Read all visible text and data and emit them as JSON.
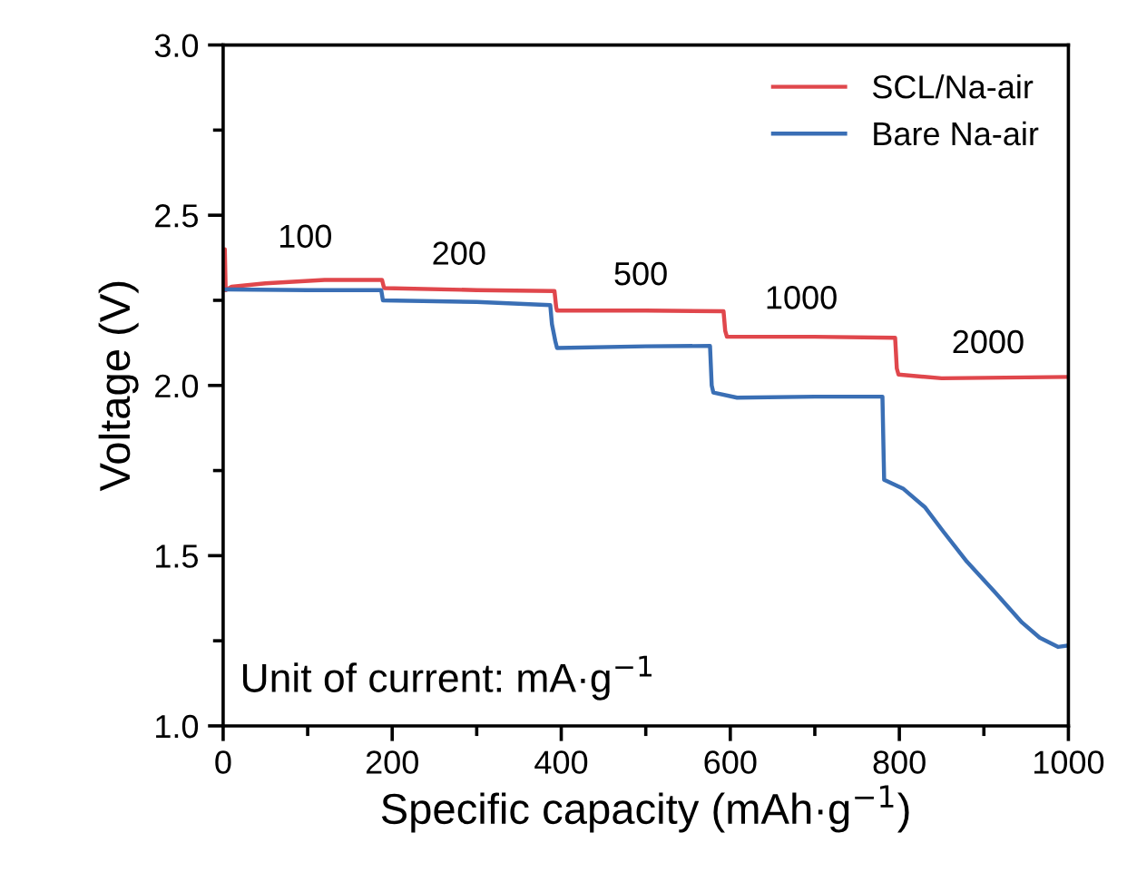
{
  "chart_data": {
    "type": "line",
    "xlabel": "Specific capacity (mAh·g$^{−1}$)",
    "ylabel": "Voltage (V)",
    "xlim": [
      0,
      1000
    ],
    "xticks": [
      0,
      200,
      400,
      600,
      800,
      1000
    ],
    "ylim": [
      1.0,
      3.0
    ],
    "yticks": [
      {
        "value": 1.0,
        "label": "1.0"
      },
      {
        "value": 1.5,
        "label": "1.5"
      },
      {
        "value": 2.0,
        "label": "2.0"
      },
      {
        "value": 2.5,
        "label": "2.5"
      },
      {
        "value": 3.0,
        "label": "3.0"
      }
    ],
    "grid": false,
    "legend": "top right",
    "marker": "none",
    "line_style": "solid",
    "series": [
      {
        "name": "SCL/Na-air",
        "color": "#e0474c",
        "x": [
          0,
          2,
          3,
          10,
          50,
          120,
          188,
          190,
          191,
          300,
          392,
          394,
          395,
          500,
          592,
          594,
          596,
          700,
          795,
          797,
          799,
          850,
          1000
        ],
        "values": [
          2.28,
          2.4,
          2.28,
          2.29,
          2.3,
          2.31,
          2.31,
          2.29,
          2.286,
          2.28,
          2.277,
          2.23,
          2.22,
          2.22,
          2.218,
          2.16,
          2.143,
          2.143,
          2.14,
          2.05,
          2.032,
          2.021,
          2.025
        ]
      },
      {
        "name": "Bare Na-air",
        "color": "#3a6fb5",
        "x": [
          0,
          100,
          187,
          189,
          300,
          387,
          389,
          393,
          395,
          500,
          576,
          578,
          580,
          608,
          700,
          780,
          782,
          805,
          830,
          852,
          880,
          913,
          945,
          966,
          988,
          1000
        ],
        "values": [
          2.282,
          2.28,
          2.28,
          2.25,
          2.245,
          2.236,
          2.18,
          2.13,
          2.11,
          2.115,
          2.116,
          2.0,
          1.979,
          1.964,
          1.967,
          1.967,
          1.723,
          1.696,
          1.643,
          1.571,
          1.482,
          1.393,
          1.304,
          1.259,
          1.232,
          1.236
        ]
      }
    ],
    "annotations": [
      "100",
      "200",
      "500",
      "1000",
      "2000",
      "Unit of current: mA·g$^{−1}$"
    ]
  }
}
